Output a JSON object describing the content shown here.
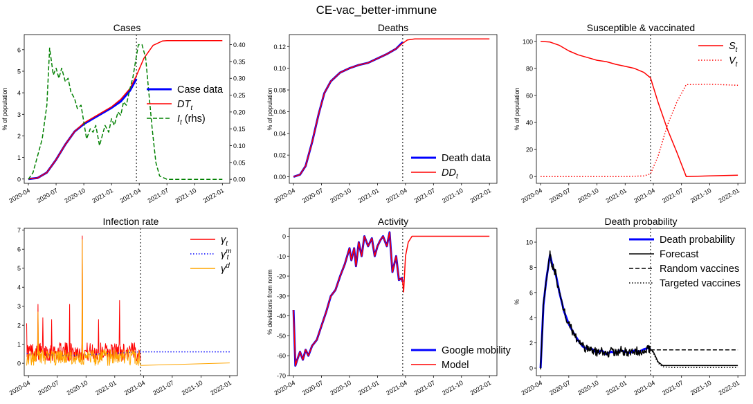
{
  "figure": {
    "title": "CE-vac_better-immune",
    "x_tick_labels": [
      "2020-04",
      "2020-07",
      "2020-10",
      "2021-01",
      "2021-04",
      "2021-07",
      "2021-10",
      "2022-01"
    ],
    "forecast_start_month": 11.7
  },
  "chart_data": [
    {
      "id": "cases",
      "type": "line",
      "title": "Cases",
      "ylabel": "% of population",
      "ylim": [
        -0.2,
        6.7
      ],
      "yticks": [
        0,
        1,
        2,
        3,
        4,
        5,
        6
      ],
      "y2label": "",
      "y2lim": [
        -0.012,
        0.43
      ],
      "y2ticks": [
        0.0,
        0.05,
        0.1,
        0.15,
        0.2,
        0.25,
        0.3,
        0.35,
        0.4
      ],
      "legend": {
        "position": "right",
        "entries": [
          "Case data",
          "DT_t",
          "I_t (rhs)"
        ]
      },
      "series": [
        {
          "name": "Case data",
          "color": "#0000ff",
          "width": 3,
          "style": "solid",
          "axis": "left",
          "x": [
            0,
            1,
            2,
            3,
            4,
            5,
            6,
            7,
            8,
            9,
            10,
            11,
            11.7
          ],
          "y": [
            0,
            0.05,
            0.3,
            0.9,
            1.6,
            2.2,
            2.55,
            2.8,
            3.05,
            3.3,
            3.6,
            4.1,
            4.65
          ]
        },
        {
          "name": "DT_t",
          "color": "#ff0000",
          "width": 1.5,
          "style": "solid",
          "axis": "left",
          "x": [
            0,
            1,
            2,
            3,
            4,
            5,
            6,
            7,
            8,
            9,
            10,
            11,
            11.7,
            12.5,
            13.5,
            14.5,
            15,
            16,
            18,
            21
          ],
          "y": [
            0,
            0.05,
            0.3,
            0.9,
            1.6,
            2.2,
            2.6,
            2.85,
            3.1,
            3.35,
            3.7,
            4.2,
            4.8,
            5.6,
            6.2,
            6.4,
            6.42,
            6.42,
            6.42,
            6.42
          ]
        },
        {
          "name": "I_t (rhs)",
          "color": "#008000",
          "width": 1.5,
          "style": "dashed",
          "axis": "right",
          "x": [
            0,
            0.5,
            1,
            1.5,
            2,
            2.3,
            2.7,
            3,
            3.3,
            3.6,
            4,
            4.3,
            4.6,
            5,
            5.3,
            5.7,
            6,
            6.3,
            6.7,
            7,
            7.3,
            7.7,
            8,
            8.3,
            8.7,
            9,
            9.3,
            9.7,
            10,
            10.3,
            10.6,
            11,
            11.3,
            11.6,
            11.9,
            12.3,
            12.7,
            13,
            13.4,
            13.8,
            14.2,
            15,
            16,
            21
          ],
          "y": [
            0,
            0.02,
            0.07,
            0.12,
            0.22,
            0.39,
            0.31,
            0.33,
            0.3,
            0.33,
            0.29,
            0.3,
            0.26,
            0.24,
            0.21,
            0.22,
            0.17,
            0.12,
            0.15,
            0.14,
            0.16,
            0.1,
            0.13,
            0.16,
            0.14,
            0.18,
            0.16,
            0.2,
            0.19,
            0.23,
            0.22,
            0.27,
            0.3,
            0.35,
            0.4,
            0.4,
            0.36,
            0.27,
            0.15,
            0.05,
            0.01,
            0,
            0,
            0
          ]
        }
      ]
    },
    {
      "id": "deaths",
      "type": "line",
      "title": "Deaths",
      "ylabel": "% of population",
      "ylim": [
        -0.006,
        0.131
      ],
      "yticks": [
        0.0,
        0.02,
        0.04,
        0.06,
        0.08,
        0.1,
        0.12
      ],
      "legend": {
        "position": "bottom-right",
        "entries": [
          "Death data",
          "DD_t"
        ]
      },
      "series": [
        {
          "name": "Death data",
          "color": "#0000ff",
          "width": 3,
          "style": "solid",
          "x": [
            0,
            0.7,
            1.3,
            2,
            2.7,
            3.3,
            4,
            5,
            6,
            7,
            8,
            9,
            10,
            11,
            11.7
          ],
          "y": [
            0,
            0.002,
            0.01,
            0.032,
            0.058,
            0.077,
            0.088,
            0.096,
            0.1,
            0.103,
            0.105,
            0.109,
            0.113,
            0.118,
            0.124
          ]
        },
        {
          "name": "DD_t",
          "color": "#ff0000",
          "width": 1.5,
          "style": "solid",
          "x": [
            0,
            0.7,
            1.3,
            2,
            2.7,
            3.3,
            4,
            5,
            6,
            7,
            8,
            9,
            10,
            11,
            11.7,
            12.2,
            13,
            14,
            16,
            18,
            21
          ],
          "y": [
            0,
            0.002,
            0.01,
            0.032,
            0.058,
            0.077,
            0.088,
            0.096,
            0.1,
            0.103,
            0.105,
            0.109,
            0.113,
            0.118,
            0.123,
            0.126,
            0.127,
            0.127,
            0.127,
            0.127,
            0.127
          ]
        }
      ]
    },
    {
      "id": "susceptible",
      "type": "line",
      "title": "Susceptible & vaccinated",
      "ylabel": "% of population",
      "ylim": [
        -5,
        105
      ],
      "yticks": [
        0,
        20,
        40,
        60,
        80,
        100
      ],
      "legend": {
        "position": "top-right",
        "entries": [
          "S_t",
          "V_t"
        ]
      },
      "series": [
        {
          "name": "S_t",
          "color": "#ff0000",
          "width": 1.5,
          "style": "solid",
          "x": [
            0,
            1,
            2,
            3,
            4,
            5,
            6,
            7,
            8,
            9,
            10,
            11,
            11.7,
            12.5,
            13.5,
            14.5,
            15.5,
            18,
            21
          ],
          "y": [
            100,
            99.5,
            97,
            93,
            90,
            88,
            86,
            85,
            83,
            81.5,
            80,
            77,
            73,
            55,
            35,
            18,
            0,
            0.5,
            1
          ]
        },
        {
          "name": "V_t",
          "color": "#ff0000",
          "width": 1.5,
          "style": "dotted",
          "x": [
            0,
            3,
            6,
            9,
            11,
            11.7,
            12.5,
            13.5,
            14.5,
            15.5,
            18,
            21
          ],
          "y": [
            0,
            0,
            0,
            0,
            0.5,
            2,
            15,
            38,
            55,
            68,
            68.3,
            67.5
          ]
        }
      ]
    },
    {
      "id": "infection",
      "type": "line",
      "title": "Infection rate",
      "ylabel": "",
      "ylim": [
        -0.65,
        7.1
      ],
      "yticks": [
        0,
        1,
        2,
        3,
        4,
        5,
        6,
        7
      ],
      "legend": {
        "position": "top-right",
        "entries": [
          "γ_t",
          "γ^m_t",
          "γ^d"
        ]
      },
      "series": [
        {
          "name": "γ_t",
          "color": "#ff0000",
          "width": 1,
          "style": "solid",
          "noise": 0.7,
          "spikes": [
            [
              -0.2,
              2.1
            ],
            [
              1,
              3.1
            ],
            [
              1.5,
              2.4
            ],
            [
              2.4,
              2.3
            ],
            [
              4.3,
              3.1
            ],
            [
              5.6,
              6.7
            ],
            [
              7.3,
              2.3
            ],
            [
              9.5,
              3.3
            ]
          ],
          "x": [
            -0.2,
            11.7
          ],
          "y": [
            0.6,
            0.6
          ]
        },
        {
          "name": "γ^m_t",
          "color": "#0000ff",
          "width": 1.5,
          "style": "dotted",
          "x": [
            -0.2,
            2,
            4,
            6,
            8,
            11.7,
            21
          ],
          "y": [
            0.5,
            0.45,
            0.4,
            0.45,
            0.5,
            0.6,
            0.6
          ]
        },
        {
          "name": "γ^d",
          "color": "#ffa500",
          "width": 1,
          "style": "solid",
          "noise": 0.6,
          "spikes": [
            [
              1,
              2.7
            ],
            [
              5.6,
              6.5
            ]
          ],
          "x": [
            -0.2,
            11.7,
            21
          ],
          "y": [
            0.3,
            0.3,
            0.02
          ]
        }
      ]
    },
    {
      "id": "activity",
      "type": "line",
      "title": "Activity",
      "ylabel": "% deviations from norm",
      "ylim": [
        -70,
        4
      ],
      "yticks": [
        0,
        -10,
        -20,
        -30,
        -40,
        -50,
        -60,
        -70
      ],
      "legend": {
        "position": "bottom-right",
        "entries": [
          "Google mobility",
          "Model"
        ]
      },
      "series": [
        {
          "name": "Google mobility",
          "color": "#0000ff",
          "width": 3,
          "style": "solid",
          "x": [
            0,
            0.2,
            0.4,
            0.7,
            1,
            1.3,
            1.6,
            2,
            2.5,
            3,
            3.5,
            4,
            4.5,
            5,
            5.5,
            6,
            6.2,
            6.5,
            6.7,
            7,
            7.3,
            7.6,
            8,
            8.4,
            8.7,
            9,
            9.3,
            9.6,
            10,
            10.3,
            10.6,
            11,
            11.3,
            11.6,
            11.7
          ],
          "y": [
            -37,
            -65,
            -62,
            -58,
            -62,
            -57,
            -60,
            -55,
            -52,
            -45,
            -38,
            -30,
            -27,
            -20,
            -14,
            -6,
            -12,
            -6,
            -15,
            -3,
            -10,
            0,
            -5,
            -1,
            -10,
            -5,
            -2,
            0,
            -5,
            2,
            -18,
            -10,
            -22,
            -21,
            -23
          ]
        },
        {
          "name": "Model",
          "color": "#ff0000",
          "width": 1.5,
          "style": "solid",
          "x": [
            0,
            0.2,
            0.4,
            0.7,
            1,
            1.3,
            1.6,
            2,
            2.5,
            3,
            3.5,
            4,
            4.5,
            5,
            5.5,
            6,
            6.2,
            6.5,
            6.7,
            7,
            7.3,
            7.6,
            8,
            8.4,
            8.7,
            9,
            9.3,
            9.6,
            10,
            10.3,
            10.6,
            11,
            11.3,
            11.6,
            11.7,
            11.8,
            12,
            12.3,
            12.7,
            13,
            14,
            16,
            21
          ],
          "y": [
            -37,
            -65,
            -62,
            -58,
            -62,
            -57,
            -60,
            -55,
            -52,
            -45,
            -38,
            -30,
            -27,
            -20,
            -14,
            -6,
            -12,
            -6,
            -15,
            -3,
            -10,
            0,
            -5,
            -1,
            -10,
            -5,
            -2,
            0,
            -5,
            2,
            -18,
            -10,
            -22,
            -21,
            -23,
            -28,
            -10,
            -3,
            0,
            0,
            0,
            0,
            0
          ]
        }
      ]
    },
    {
      "id": "deathprob",
      "type": "line",
      "title": "Death probability",
      "ylabel": "%",
      "ylim": [
        -0.6,
        11.1
      ],
      "yticks": [
        0,
        2,
        4,
        6,
        8,
        10
      ],
      "legend": {
        "position": "top-right",
        "entries": [
          "Death probability",
          "Forecast",
          "Random vaccines",
          "Targeted vaccines"
        ]
      },
      "series": [
        {
          "name": "Death probability",
          "color": "#0000ff",
          "width": 3,
          "style": "solid",
          "x": [
            0,
            0.3,
            0.6,
            1,
            1.3,
            1.6,
            2,
            2.5,
            3,
            3.5,
            4,
            4.5,
            5,
            5.5,
            6,
            6.5,
            7,
            7.5,
            8,
            8.5,
            9,
            9.5,
            10,
            10.5,
            11,
            11.5,
            11.7
          ],
          "y": [
            0,
            5,
            7,
            9,
            8,
            7.5,
            6,
            4.5,
            3.5,
            2.8,
            2.2,
            1.7,
            1.5,
            1.5,
            1.2,
            1.4,
            1.1,
            1.3,
            1.2,
            1.4,
            1.3,
            1.2,
            1.4,
            1.3,
            1.5,
            1.6,
            1.5
          ]
        },
        {
          "name": "Forecast",
          "color": "#000000",
          "width": 1.5,
          "style": "solid",
          "noise": 0.7,
          "x": [
            0,
            0.3,
            0.6,
            1,
            1.3,
            1.6,
            2,
            2.5,
            3,
            3.5,
            4,
            4.5,
            5,
            5.5,
            6,
            6.5,
            7,
            7.5,
            8,
            8.5,
            9,
            9.5,
            10,
            10.5,
            11,
            11.5,
            11.7,
            12,
            12.5,
            13,
            14,
            16,
            21
          ],
          "y": [
            0,
            5,
            7,
            9,
            8,
            7.5,
            6,
            4.5,
            3.5,
            2.8,
            2.2,
            1.7,
            1.5,
            1.5,
            1.2,
            1.4,
            1.1,
            1.3,
            1.2,
            1.4,
            1.3,
            1.2,
            1.4,
            1.3,
            1.5,
            1.6,
            1.5,
            1.3,
            0.5,
            0.2,
            0.2,
            0.2,
            0.2
          ]
        },
        {
          "name": "Random vaccines",
          "color": "#000000",
          "width": 1.5,
          "style": "dashed",
          "x": [
            11.7,
            21
          ],
          "y": [
            1.45,
            1.45
          ]
        },
        {
          "name": "Targeted vaccines",
          "color": "#000000",
          "width": 1.5,
          "style": "dotted",
          "x": [
            11.7,
            12,
            12.5,
            13,
            14,
            21
          ],
          "y": [
            1.5,
            1.2,
            0.4,
            0.1,
            0.05,
            0.05
          ]
        }
      ]
    }
  ]
}
